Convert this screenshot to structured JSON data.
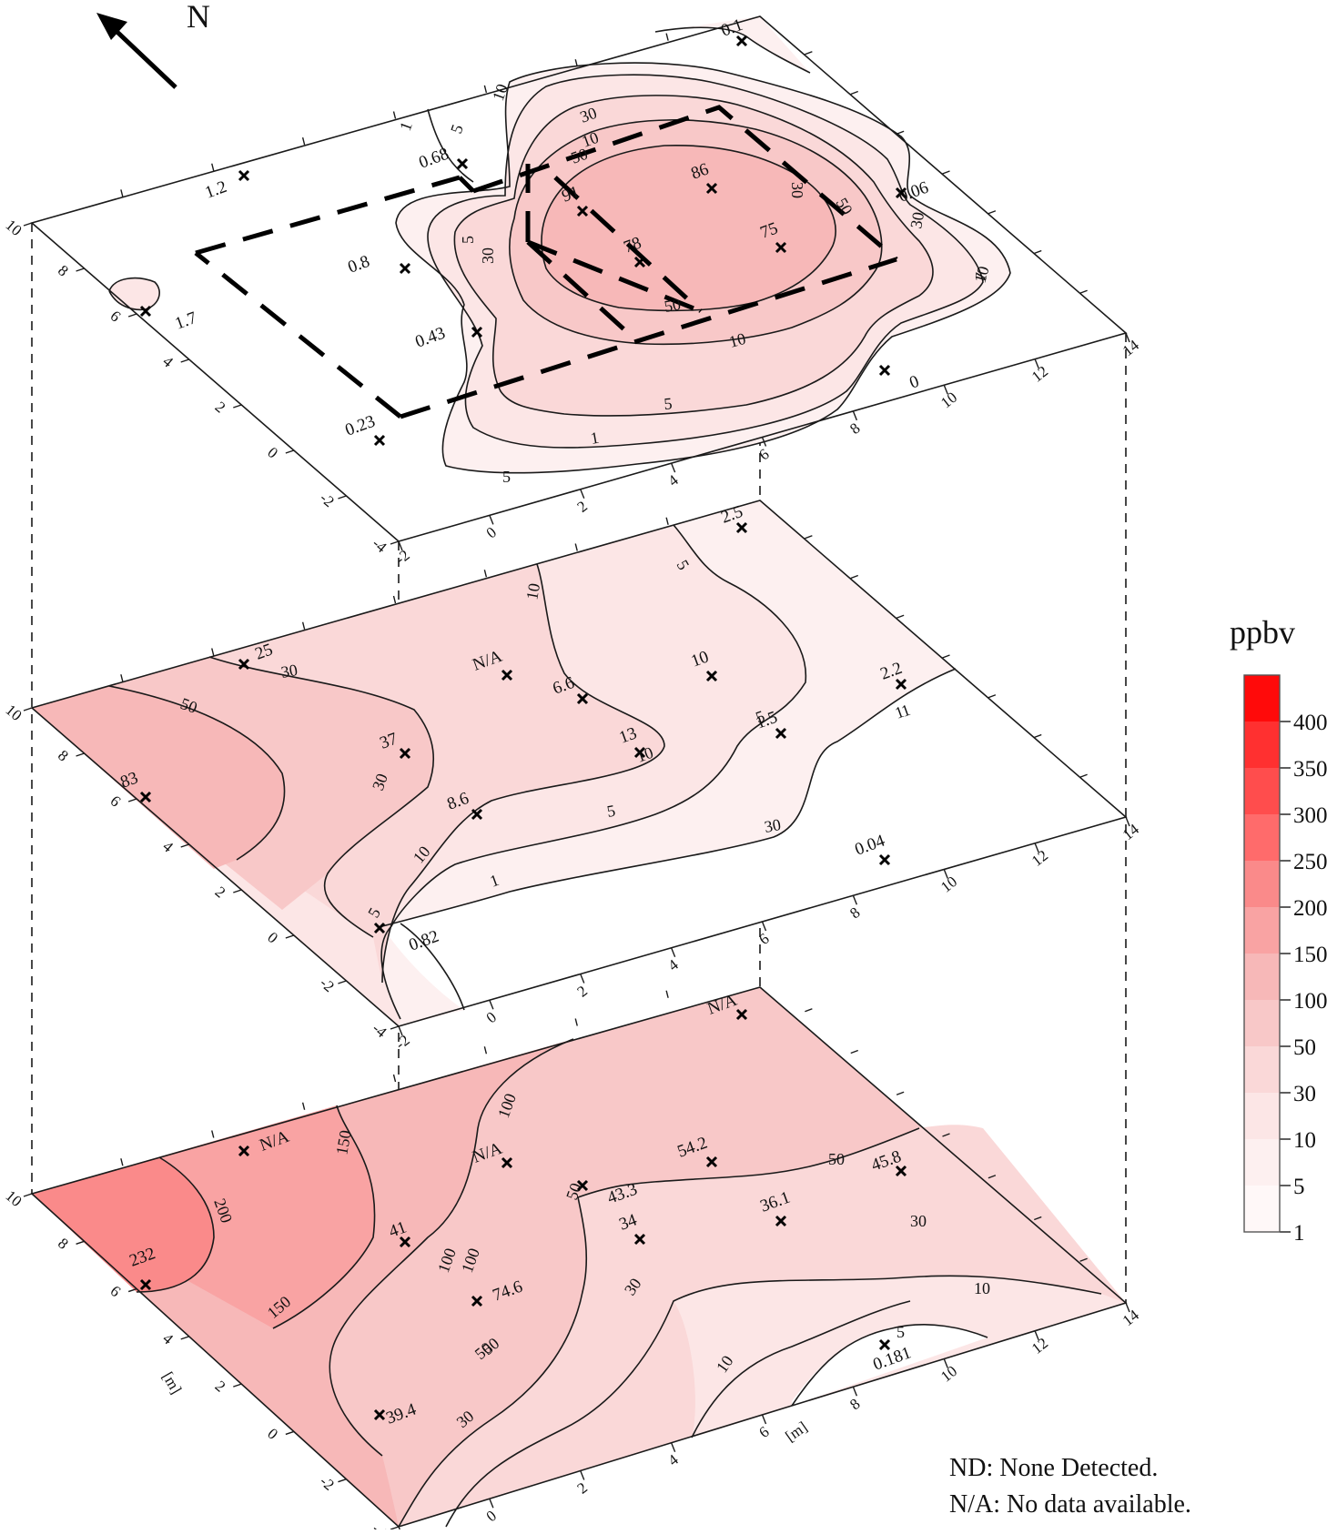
{
  "north_label": "N",
  "legend": {
    "title": "ppbv",
    "ticks": [
      "400",
      "350",
      "300",
      "250",
      "200",
      "150",
      "100",
      "50",
      "30",
      "10",
      "5",
      "1"
    ],
    "colors": [
      "#ff0a0a",
      "#ff3030",
      "#ff4d4d",
      "#ff6b6b",
      "#fa8a8a",
      "#f9a3a3",
      "#f7b8b8",
      "#f8c8c8",
      "#fad8d8",
      "#fce6e6",
      "#fdf0f0",
      "#fff8f8"
    ]
  },
  "notes": {
    "nd": "ND: None Detected.",
    "na": "N/A: No data available."
  },
  "axes": {
    "unit_label": "[m]",
    "left_ticks": [
      "10",
      "8",
      "6",
      "4",
      "2",
      "0",
      "-2",
      "-4"
    ],
    "bottom_ticks": [
      "-2",
      "0",
      "2",
      "4",
      "6",
      "8",
      "10",
      "12",
      "14"
    ]
  },
  "layers": [
    {
      "id": "top",
      "points": [
        {
          "label": "0.1",
          "role": "sample"
        },
        {
          "label": "1.2",
          "role": "sample"
        },
        {
          "label": "0.68",
          "role": "sample"
        },
        {
          "label": "91",
          "role": "sample"
        },
        {
          "label": "86",
          "role": "sample"
        },
        {
          "label": "0.06",
          "role": "sample"
        },
        {
          "label": "0.8",
          "role": "sample"
        },
        {
          "label": "78",
          "role": "sample"
        },
        {
          "label": "75",
          "role": "sample"
        },
        {
          "label": "1.7",
          "role": "sample"
        },
        {
          "label": "0.43",
          "role": "sample"
        },
        {
          "label": "0",
          "role": "sample"
        },
        {
          "label": "0.23",
          "role": "sample"
        }
      ],
      "contour_labels": [
        "1",
        "5",
        "10",
        "30",
        "50",
        "50",
        "30",
        "30",
        "10",
        "5",
        "1",
        "5",
        "10",
        "30",
        "50",
        "10",
        "5",
        "1"
      ]
    },
    {
      "id": "middle",
      "points": [
        {
          "label": "2.5"
        },
        {
          "label": "25"
        },
        {
          "label": "N/A"
        },
        {
          "label": "10"
        },
        {
          "label": "2.2"
        },
        {
          "label": "6.6"
        },
        {
          "label": "37"
        },
        {
          "label": "13"
        },
        {
          "label": "1.5"
        },
        {
          "label": "83"
        },
        {
          "label": "8.6"
        },
        {
          "label": "0.04"
        },
        {
          "label": "0.82"
        }
      ],
      "contour_labels": [
        "5",
        "10",
        "30",
        "50",
        "30",
        "10",
        "5",
        "1",
        "30",
        "10",
        "5",
        "1",
        "1",
        "5"
      ]
    },
    {
      "id": "bottom",
      "points": [
        {
          "label": "N/A"
        },
        {
          "label": "N/A"
        },
        {
          "label": "N/A"
        },
        {
          "label": "54.2"
        },
        {
          "label": "45.8"
        },
        {
          "label": "43.3"
        },
        {
          "label": "34"
        },
        {
          "label": "36.1"
        },
        {
          "label": "232"
        },
        {
          "label": "41"
        },
        {
          "label": "74.6"
        },
        {
          "label": "0.181"
        },
        {
          "label": "39.4"
        }
      ],
      "contour_labels": [
        "100",
        "150",
        "200",
        "150",
        "100",
        "50",
        "50",
        "50",
        "30",
        "30",
        "10",
        "5",
        "100",
        "50",
        "30",
        "10"
      ]
    }
  ]
}
